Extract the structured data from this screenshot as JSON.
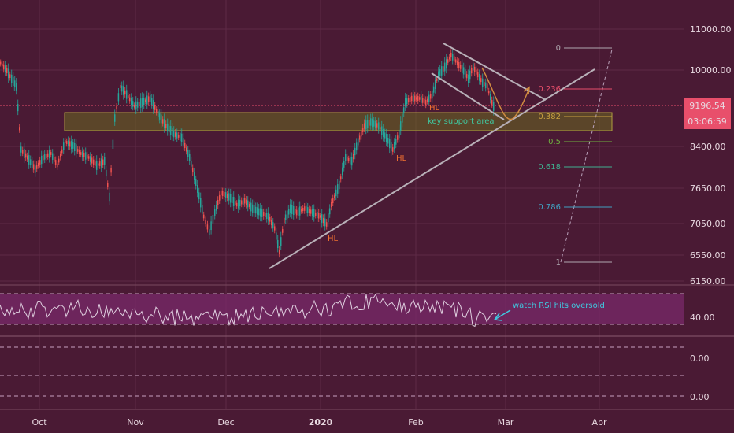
{
  "chart_data": {
    "type": "candlestick",
    "price_axis": {
      "scale": "log",
      "ticks": [
        "11000.00",
        "10000.00",
        "8400.00",
        "7650.00",
        "7050.00",
        "6550.00",
        "6150.00"
      ],
      "ylim": [
        6150,
        11800
      ]
    },
    "time_axis": {
      "ticks": [
        "Oct",
        "Nov",
        "Dec",
        "2020",
        "Feb",
        "Mar",
        "Apr"
      ]
    },
    "last_price": {
      "value": "9196.54",
      "countdown": "03:06:59",
      "color": "#e84f6b"
    },
    "annotations": {
      "support_zone_label": "key support area",
      "higher_low_label": "HL",
      "rsi_note": "watch RSI hits oversold"
    },
    "fib_levels": [
      {
        "label": "0",
        "color": "#b0a8b0"
      },
      {
        "label": "0.236",
        "color": "#e84f6b"
      },
      {
        "label": "0.382",
        "color": "#c8a040"
      },
      {
        "label": "0.5",
        "color": "#70b040"
      },
      {
        "label": "0.618",
        "color": "#40b090"
      },
      {
        "label": "0.786",
        "color": "#40a0c0"
      },
      {
        "label": "1",
        "color": "#b0a8b0"
      }
    ],
    "rsi": {
      "ticks": [
        "40.00",
        "0.00",
        "0.00"
      ],
      "band_color": "#7a2a6a"
    },
    "colors": {
      "up": "#26a69a",
      "down": "#ef5350",
      "background": "#4a1a34"
    }
  }
}
